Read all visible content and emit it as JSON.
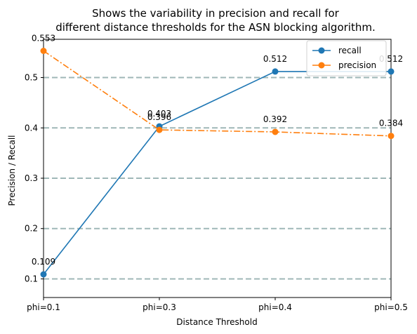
{
  "chart_data": {
    "type": "line",
    "title_lines": [
      "Shows the variability in precision and recall for",
      "different distance thresholds for the ASN blocking algorithm."
    ],
    "xlabel": "Distance Threshold",
    "ylabel": "Precision / Recall",
    "categories": [
      "phi=0.1",
      "phi=0.3",
      "phi=0.4",
      "phi=0.5"
    ],
    "ylim": [
      0.063,
      0.576
    ],
    "yticks": [
      0.1,
      0.2,
      0.3,
      0.4,
      0.5
    ],
    "ytick_labels": [
      "0.1",
      "0.2",
      "0.3",
      "0.4",
      "0.5"
    ],
    "grid": "horizontal dashed at y ticks",
    "legend_position": "top-right",
    "series": [
      {
        "name": "recall",
        "values": [
          0.109,
          0.403,
          0.512,
          0.512
        ],
        "labels": [
          "0.109",
          "0.403",
          "0.512",
          "0.512"
        ],
        "color": "#1f77b4",
        "linestyle": "solid"
      },
      {
        "name": "precision",
        "values": [
          0.553,
          0.396,
          0.392,
          0.384
        ],
        "labels": [
          "0.553",
          "0.396",
          "0.392",
          "0.384"
        ],
        "color": "#ff7f0e",
        "linestyle": "dashdot"
      }
    ],
    "grid_color": "#9fb7b7"
  }
}
